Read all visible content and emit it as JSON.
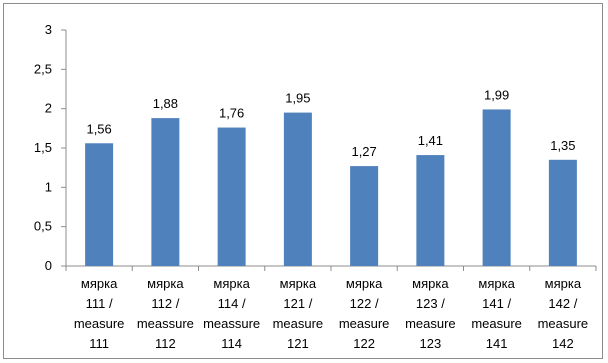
{
  "chart_data": {
    "type": "bar",
    "categories": [
      [
        "мярка",
        "111 /",
        "measure",
        "111"
      ],
      [
        "мярка",
        "112 /",
        "meassure",
        "112"
      ],
      [
        "мярка",
        "114 /",
        "meassure",
        "114"
      ],
      [
        "мярка",
        "121 /",
        "measure",
        "121"
      ],
      [
        "мярка",
        "122 /",
        "measure",
        "122"
      ],
      [
        "мярка",
        "123 /",
        "measure",
        "123"
      ],
      [
        "мярка",
        "141 /",
        "measure",
        "141"
      ],
      [
        "мярка",
        "142 /",
        "measure",
        "142"
      ]
    ],
    "values": [
      1.56,
      1.88,
      1.76,
      1.95,
      1.27,
      1.41,
      1.99,
      1.35
    ],
    "data_labels": [
      "1,56",
      "1,88",
      "1,76",
      "1,95",
      "1,27",
      "1,41",
      "1,99",
      "1,35"
    ],
    "ylim": [
      0,
      3
    ],
    "yticks": [
      0,
      0.5,
      1,
      1.5,
      2,
      2.5,
      3
    ],
    "ytick_labels": [
      "0",
      "0,5",
      "1",
      "1,5",
      "2",
      "2,5",
      "3"
    ],
    "grid": false,
    "legend": "none",
    "title": "",
    "xlabel": "",
    "ylabel": "",
    "bar_color": "#4F81BD",
    "axis_color": "#8C8C8C"
  }
}
